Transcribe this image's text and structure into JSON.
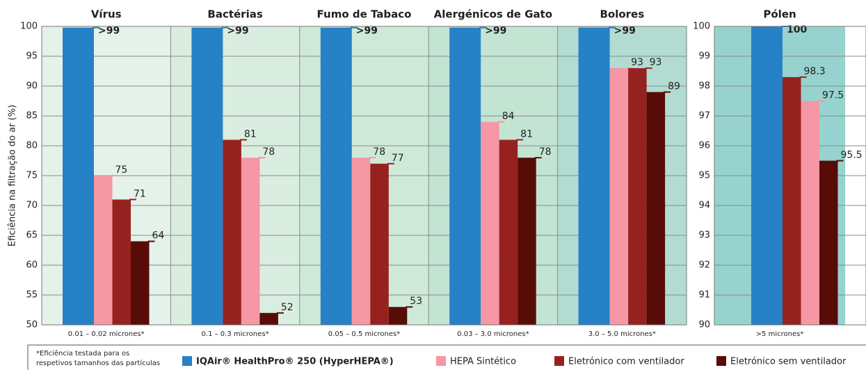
{
  "chart_data": [
    {
      "type": "bar",
      "y_label": "Eficiência na filtração do ar (%)",
      "categories": [
        "Vírus",
        "Bactérias",
        "Fumo de Tabaco",
        "Alergénicos de Gato",
        "Bolores"
      ],
      "category_sublabels": [
        "0.01 – 0.02 micrones*",
        "0.1 – 0.3 micrones*",
        "0.05 – 0.5 micrones*",
        "0.03 – 3.0 micrones*",
        "3.0 – 5.0 micrones*"
      ],
      "background_colors": [
        "#e4f2e9",
        "#d9eee0",
        "#cfe9d9",
        "#c3e4d3",
        "#b2dcd1"
      ],
      "ylim": [
        50,
        100
      ],
      "yticks": [
        50,
        55,
        60,
        65,
        70,
        75,
        80,
        85,
        90,
        95,
        100
      ],
      "grid": true,
      "series": [
        {
          "name": "IQAir® HealthPro® 250 (HyperHEPA®)",
          "color": "#2781c7",
          "label_color": "#2781c7",
          "values": [
            99.8,
            99.8,
            99.8,
            99.8,
            99.8
          ],
          "value_labels": [
            ">99",
            ">99",
            ">99",
            ">99",
            ">99"
          ]
        },
        {
          "name": "HEPA Sintético",
          "color": "#f597a4",
          "label_color": "#d4509a",
          "values": [
            75,
            78,
            78,
            84,
            93
          ]
        },
        {
          "name": "Eletrónico com ventilador",
          "color": "#962220",
          "label_color": "#8e1d1b",
          "values": [
            71,
            81,
            77,
            81,
            93
          ]
        },
        {
          "name": "Eletrónico sem ventilador",
          "color": "#570c08",
          "label_color": "#4a0c08",
          "values": [
            64,
            52,
            53,
            78,
            89
          ]
        }
      ],
      "footnote": [
        "*Eficiência testada para os",
        "respetivos tamanhos das partículas"
      ]
    },
    {
      "type": "bar",
      "categories": [
        "Pólen"
      ],
      "category_sublabels": [
        ">5 micrones*"
      ],
      "background_colors": [
        "#96d3cf"
      ],
      "ylim": [
        90,
        100
      ],
      "yticks": [
        90,
        91,
        92,
        93,
        94,
        95,
        96,
        97,
        98,
        99,
        100
      ],
      "grid": true,
      "series": [
        {
          "color": "#2781c7",
          "label_color": "#2781c7",
          "values": [
            100
          ]
        },
        {
          "color": "#f597a4",
          "label_color": "#d4509a",
          "values": [
            97.5
          ]
        },
        {
          "color": "#962220",
          "label_color": "#8e1d1b",
          "values": [
            98.3
          ]
        },
        {
          "color": "#570c08",
          "label_color": "#4a0c08",
          "values": [
            95.5
          ]
        }
      ]
    }
  ]
}
